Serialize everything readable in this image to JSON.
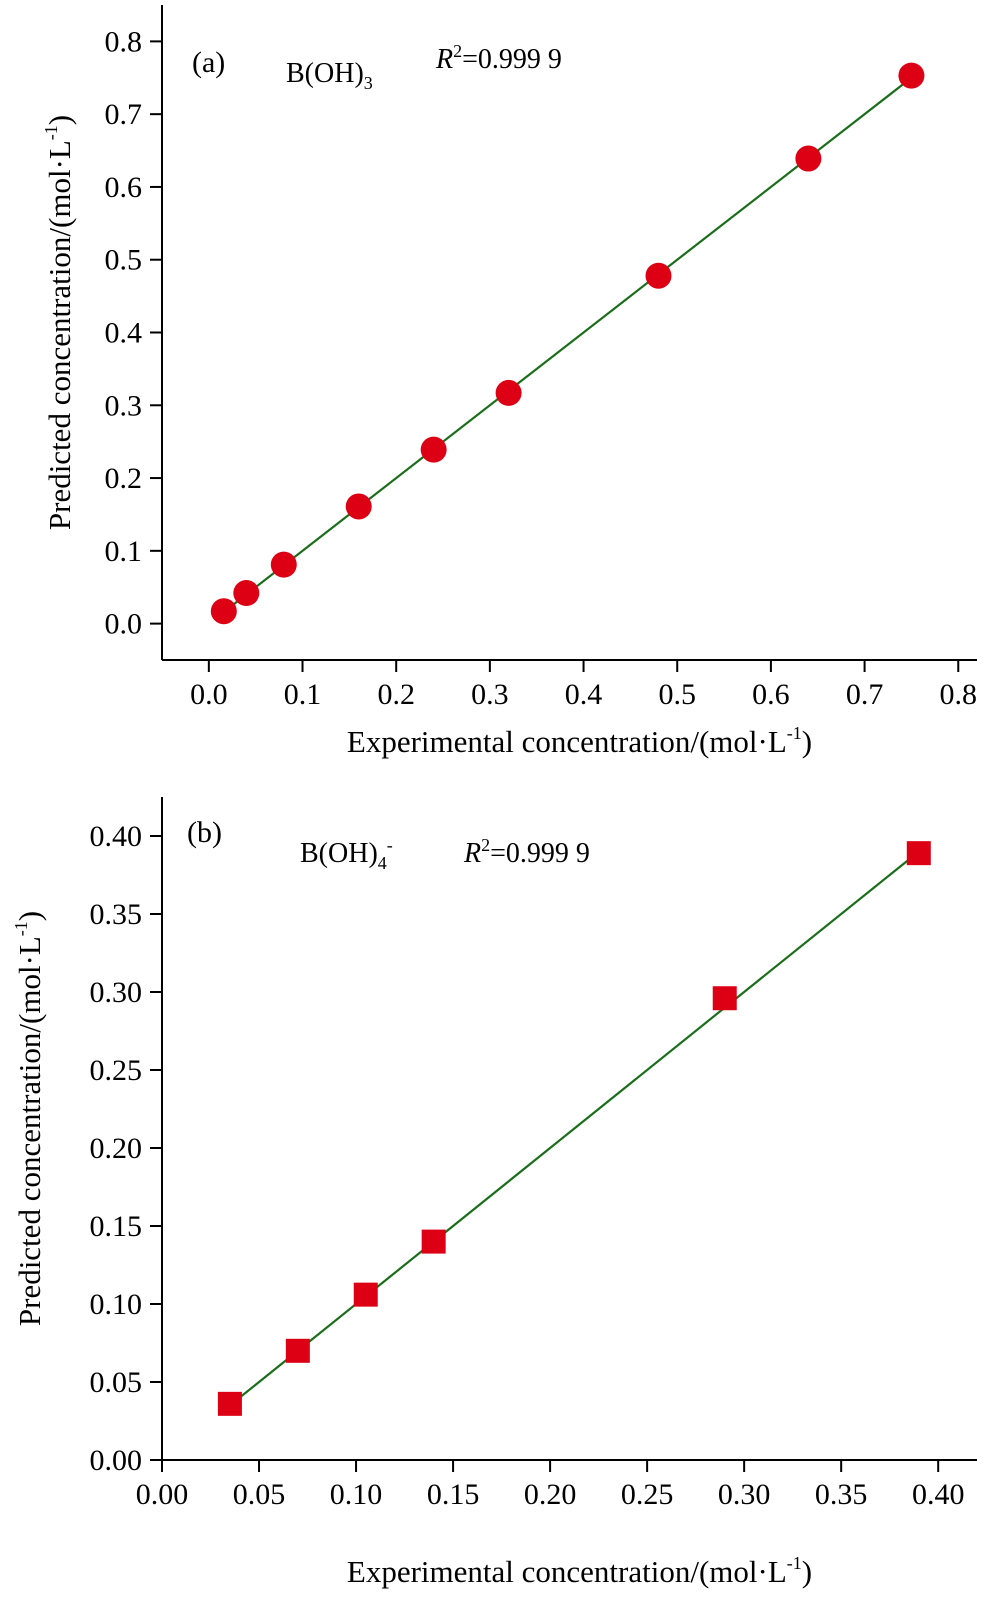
{
  "chart_data": [
    {
      "type": "scatter",
      "panel_label": "(a)",
      "annotation": {
        "species_base": "B(OH)",
        "species_sub": "3",
        "species_sup": "",
        "r2_var": "R",
        "r2_exp": "2",
        "r2_value": "=0.999 9"
      },
      "xlabel": {
        "main": "Experimental concentration/(mol·L",
        "sup": "-1",
        "close": ")"
      },
      "ylabel": {
        "main": "Predicted concentration/(mol·L",
        "sup": "-1",
        "close": ")"
      },
      "xlim": [
        -0.05,
        0.82
      ],
      "ylim": [
        -0.05,
        0.85
      ],
      "xticks": [
        "0.0",
        "0.1",
        "0.2",
        "0.3",
        "0.4",
        "0.5",
        "0.6",
        "0.7",
        "0.8"
      ],
      "yticks": [
        "0.0",
        "0.1",
        "0.2",
        "0.3",
        "0.4",
        "0.5",
        "0.6",
        "0.7",
        "0.8"
      ],
      "marker": "circle",
      "marker_color": "#dd0015",
      "fit_color": "#1a6e1a",
      "x": [
        0.016,
        0.04,
        0.08,
        0.16,
        0.24,
        0.32,
        0.48,
        0.64,
        0.75
      ],
      "y": [
        0.017,
        0.042,
        0.081,
        0.161,
        0.239,
        0.317,
        0.478,
        0.639,
        0.753
      ],
      "fit": [
        [
          0.016,
          0.016
        ],
        [
          0.75,
          0.75
        ]
      ]
    },
    {
      "type": "scatter",
      "panel_label": "(b)",
      "annotation": {
        "species_base": "B(OH)",
        "species_sub": "4",
        "species_sup": "-",
        "r2_var": "R",
        "r2_exp": "2",
        "r2_value": "=0.999 9"
      },
      "xlabel": {
        "main": "Experimental concentration/(mol·L",
        "sup": "-1",
        "close": ")"
      },
      "ylabel": {
        "main": "Predicted concentration/(mol·L",
        "sup": "-1",
        "close": ")"
      },
      "xlim": [
        0.0,
        0.42
      ],
      "ylim": [
        0.0,
        0.425
      ],
      "xticks": [
        "0.00",
        "0.05",
        "0.10",
        "0.15",
        "0.20",
        "0.25",
        "0.30",
        "0.35",
        "0.40"
      ],
      "yticks": [
        "0.00",
        "0.05",
        "0.10",
        "0.15",
        "0.20",
        "0.25",
        "0.30",
        "0.35",
        "0.40"
      ],
      "marker": "square",
      "marker_color": "#dd0015",
      "fit_color": "#1a6e1a",
      "x": [
        0.035,
        0.07,
        0.105,
        0.14,
        0.29,
        0.39
      ],
      "y": [
        0.036,
        0.07,
        0.106,
        0.14,
        0.296,
        0.389
      ],
      "fit": [
        [
          0.035,
          0.035
        ],
        [
          0.39,
          0.39
        ]
      ]
    }
  ]
}
